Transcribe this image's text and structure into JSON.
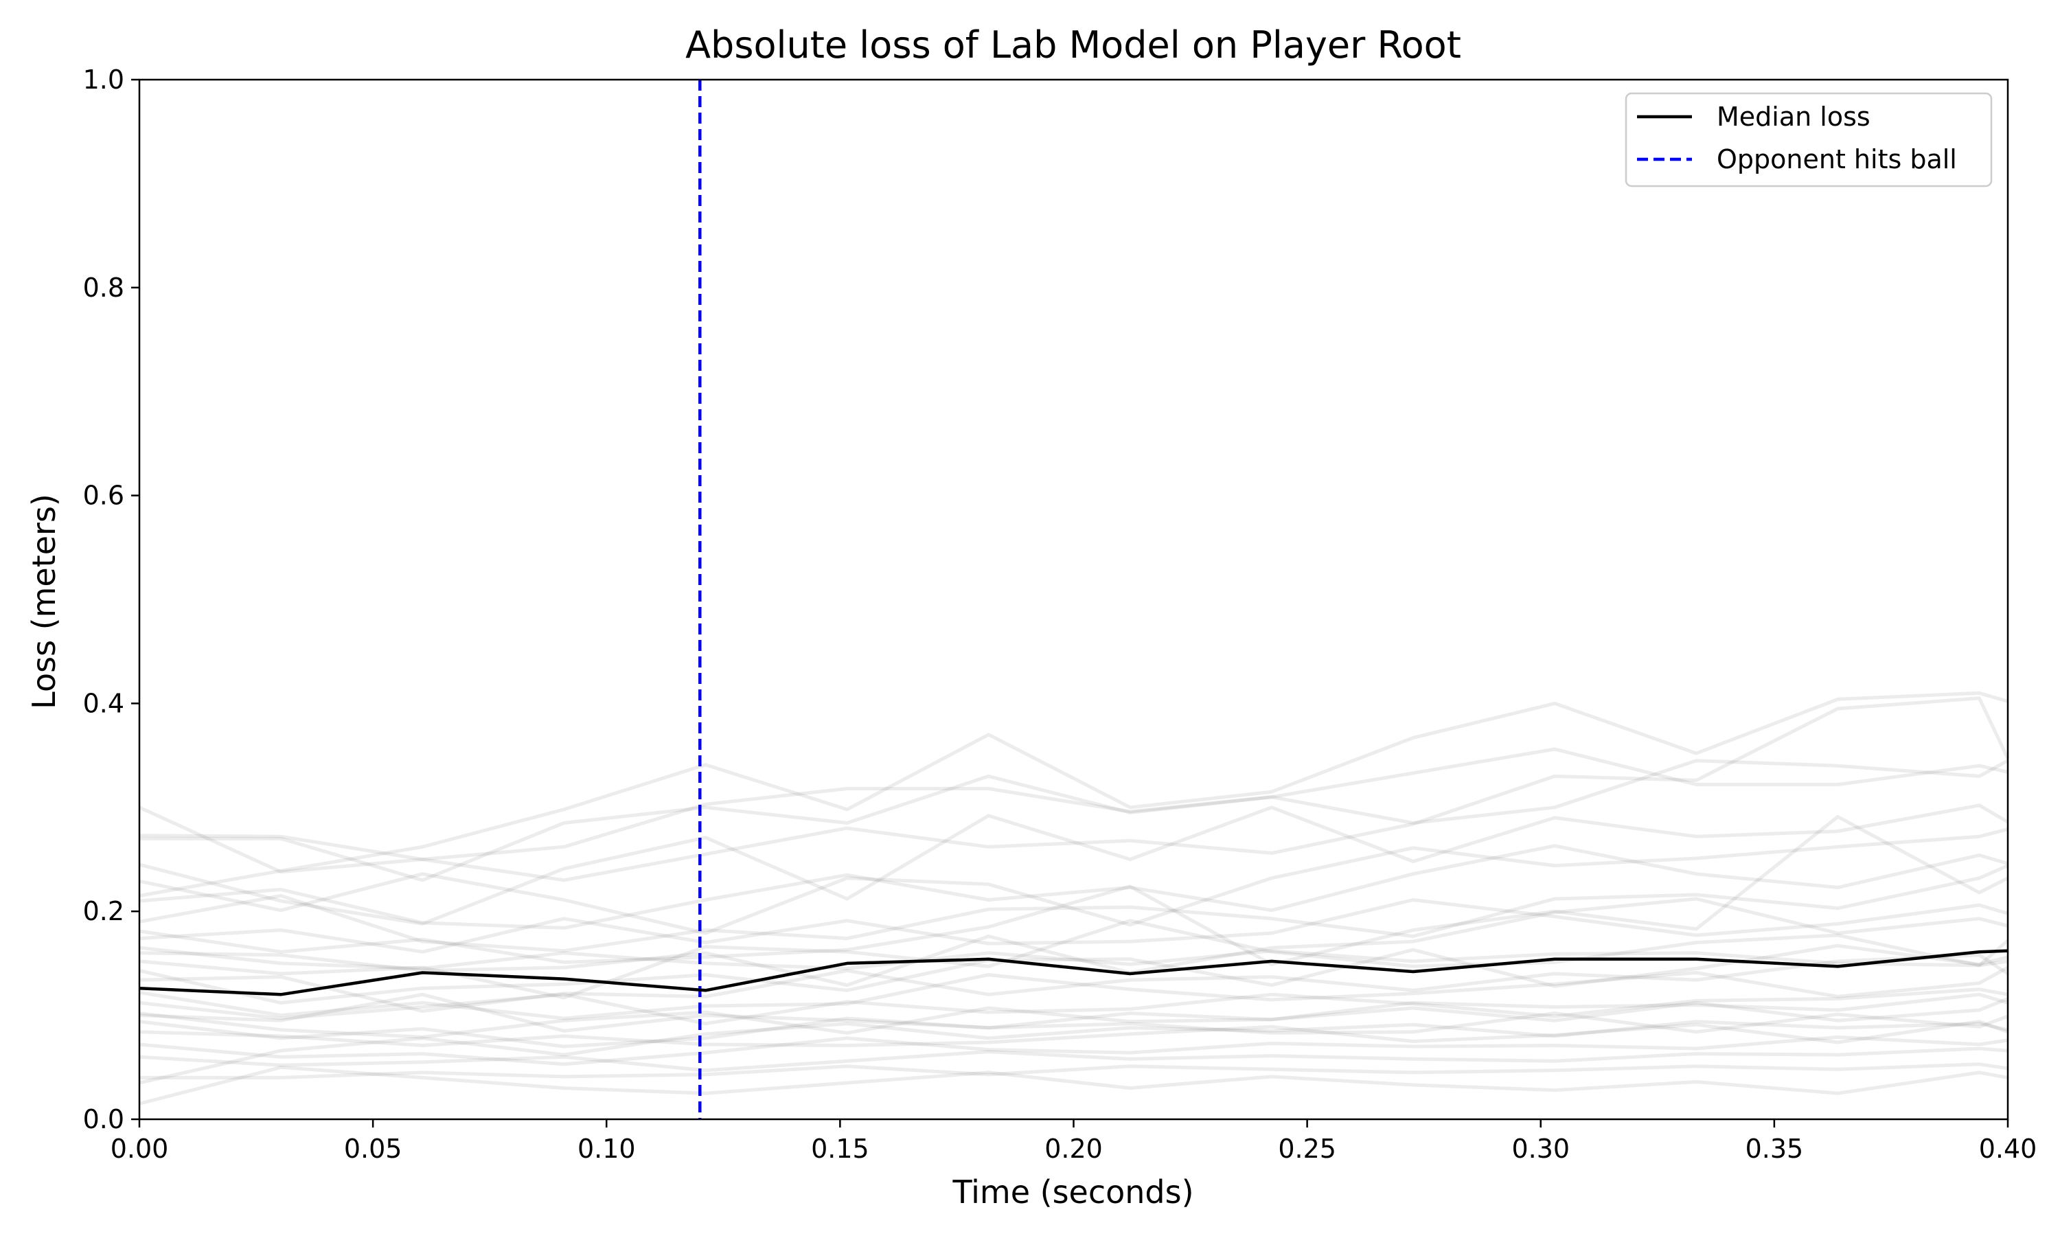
{
  "chart_data": {
    "type": "line",
    "title": "Absolute loss of Lab Model on Player Root",
    "xlabel": "Time (seconds)",
    "ylabel": "Loss (meters)",
    "xlim": [
      0.0,
      0.4
    ],
    "ylim": [
      0.0,
      1.0
    ],
    "xticks": [
      "0.00",
      "0.05",
      "0.10",
      "0.15",
      "0.20",
      "0.25",
      "0.30",
      "0.35",
      "0.40"
    ],
    "yticks": [
      "0.0",
      "0.2",
      "0.4",
      "0.6",
      "0.8",
      "1.0"
    ],
    "grid": false,
    "legend_position": "top-right",
    "x": [
      0.0,
      0.0303,
      0.0606,
      0.0909,
      0.1212,
      0.1515,
      0.1818,
      0.2121,
      0.2424,
      0.2727,
      0.303,
      0.3333,
      0.3636,
      0.3939,
      0.4
    ],
    "series": [
      {
        "name": "Median loss",
        "color": "#000000",
        "style": "solid",
        "values": [
          0.126,
          0.12,
          0.141,
          0.135,
          0.124,
          0.15,
          0.154,
          0.14,
          0.152,
          0.142,
          0.154,
          0.154,
          0.147,
          0.161,
          0.162
        ]
      }
    ],
    "reference_lines": [
      {
        "name": "Opponent hits ball",
        "axis": "x",
        "value": 0.12,
        "color": "#0000ff",
        "style": "dashed"
      }
    ],
    "background_traces": {
      "color": "#808080",
      "opacity": 0.15,
      "values": [
        [
          0.273,
          0.272,
          0.25,
          0.262,
          0.303,
          0.318,
          0.318,
          0.296,
          0.31,
          0.333,
          0.356,
          0.322,
          0.322,
          0.34,
          0.334
        ],
        [
          0.215,
          0.239,
          0.262,
          0.298,
          0.341,
          0.298,
          0.37,
          0.3,
          0.315,
          0.367,
          0.4,
          0.352,
          0.404,
          0.41,
          0.402
        ],
        [
          0.3,
          0.238,
          0.25,
          0.23,
          0.255,
          0.28,
          0.262,
          0.268,
          0.256,
          0.284,
          0.33,
          0.326,
          0.395,
          0.405,
          0.347
        ],
        [
          0.245,
          0.21,
          0.188,
          0.241,
          0.271,
          0.212,
          0.292,
          0.25,
          0.3,
          0.248,
          0.29,
          0.272,
          0.277,
          0.302,
          0.286
        ],
        [
          0.229,
          0.201,
          0.236,
          0.211,
          0.179,
          0.232,
          0.226,
          0.187,
          0.232,
          0.261,
          0.244,
          0.251,
          0.262,
          0.272,
          0.279
        ],
        [
          0.21,
          0.221,
          0.189,
          0.184,
          0.211,
          0.235,
          0.211,
          0.223,
          0.201,
          0.236,
          0.263,
          0.236,
          0.223,
          0.254,
          0.246
        ],
        [
          0.19,
          0.215,
          0.171,
          0.162,
          0.182,
          0.174,
          0.202,
          0.204,
          0.193,
          0.176,
          0.212,
          0.216,
          0.203,
          0.232,
          0.244
        ],
        [
          0.181,
          0.161,
          0.173,
          0.151,
          0.156,
          0.163,
          0.185,
          0.224,
          0.149,
          0.182,
          0.2,
          0.183,
          0.291,
          0.218,
          0.232
        ],
        [
          0.174,
          0.182,
          0.161,
          0.193,
          0.17,
          0.191,
          0.169,
          0.171,
          0.179,
          0.211,
          0.195,
          0.177,
          0.188,
          0.206,
          0.198
        ],
        [
          0.16,
          0.158,
          0.143,
          0.146,
          0.16,
          0.129,
          0.176,
          0.141,
          0.165,
          0.171,
          0.199,
          0.212,
          0.179,
          0.193,
          0.186
        ],
        [
          0.152,
          0.14,
          0.146,
          0.117,
          0.166,
          0.161,
          0.147,
          0.191,
          0.161,
          0.147,
          0.151,
          0.17,
          0.177,
          0.148,
          0.172
        ],
        [
          0.143,
          0.112,
          0.126,
          0.13,
          0.139,
          0.124,
          0.153,
          0.154,
          0.129,
          0.163,
          0.128,
          0.145,
          0.167,
          0.149,
          0.156
        ],
        [
          0.134,
          0.137,
          0.104,
          0.121,
          0.118,
          0.143,
          0.12,
          0.134,
          0.137,
          0.124,
          0.14,
          0.134,
          0.152,
          0.158,
          0.14
        ],
        [
          0.122,
          0.1,
          0.112,
          0.097,
          0.109,
          0.111,
          0.139,
          0.125,
          0.115,
          0.121,
          0.13,
          0.141,
          0.118,
          0.131,
          0.146
        ],
        [
          0.112,
          0.097,
          0.108,
          0.12,
          0.092,
          0.113,
          0.103,
          0.106,
          0.12,
          0.111,
          0.099,
          0.114,
          0.116,
          0.125,
          0.12
        ],
        [
          0.102,
          0.086,
          0.079,
          0.095,
          0.103,
          0.083,
          0.107,
          0.094,
          0.096,
          0.107,
          0.095,
          0.112,
          0.095,
          0.105,
          0.116
        ],
        [
          0.094,
          0.078,
          0.087,
          0.07,
          0.078,
          0.097,
          0.088,
          0.092,
          0.083,
          0.084,
          0.102,
          0.084,
          0.101,
          0.089,
          0.099
        ],
        [
          0.084,
          0.08,
          0.071,
          0.08,
          0.072,
          0.071,
          0.074,
          0.082,
          0.089,
          0.075,
          0.081,
          0.091,
          0.074,
          0.094,
          0.084
        ],
        [
          0.072,
          0.06,
          0.063,
          0.053,
          0.064,
          0.078,
          0.067,
          0.064,
          0.073,
          0.07,
          0.071,
          0.068,
          0.079,
          0.072,
          0.076
        ],
        [
          0.06,
          0.052,
          0.055,
          0.06,
          0.047,
          0.056,
          0.065,
          0.058,
          0.061,
          0.058,
          0.056,
          0.063,
          0.062,
          0.068,
          0.066
        ],
        [
          0.04,
          0.04,
          0.045,
          0.041,
          0.043,
          0.051,
          0.043,
          0.051,
          0.048,
          0.045,
          0.047,
          0.051,
          0.048,
          0.053,
          0.049
        ],
        [
          0.015,
          0.05,
          0.04,
          0.03,
          0.025,
          0.035,
          0.045,
          0.03,
          0.041,
          0.033,
          0.028,
          0.036,
          0.025,
          0.045,
          0.04
        ],
        [
          0.27,
          0.27,
          0.23,
          0.285,
          0.3,
          0.285,
          0.33,
          0.295,
          0.31,
          0.285,
          0.3,
          0.345,
          0.34,
          0.33,
          0.345
        ],
        [
          0.1,
          0.095,
          0.12,
          0.085,
          0.1,
          0.095,
          0.088,
          0.102,
          0.096,
          0.112,
          0.108,
          0.11,
          0.105,
          0.12,
          0.112
        ],
        [
          0.165,
          0.15,
          0.145,
          0.16,
          0.15,
          0.145,
          0.16,
          0.149,
          0.162,
          0.152,
          0.159,
          0.16,
          0.15,
          0.148,
          0.152
        ],
        [
          0.035,
          0.066,
          0.078,
          0.062,
          0.082,
          0.092,
          0.078,
          0.088,
          0.085,
          0.091,
          0.08,
          0.094,
          0.088,
          0.092,
          0.086
        ]
      ]
    }
  }
}
